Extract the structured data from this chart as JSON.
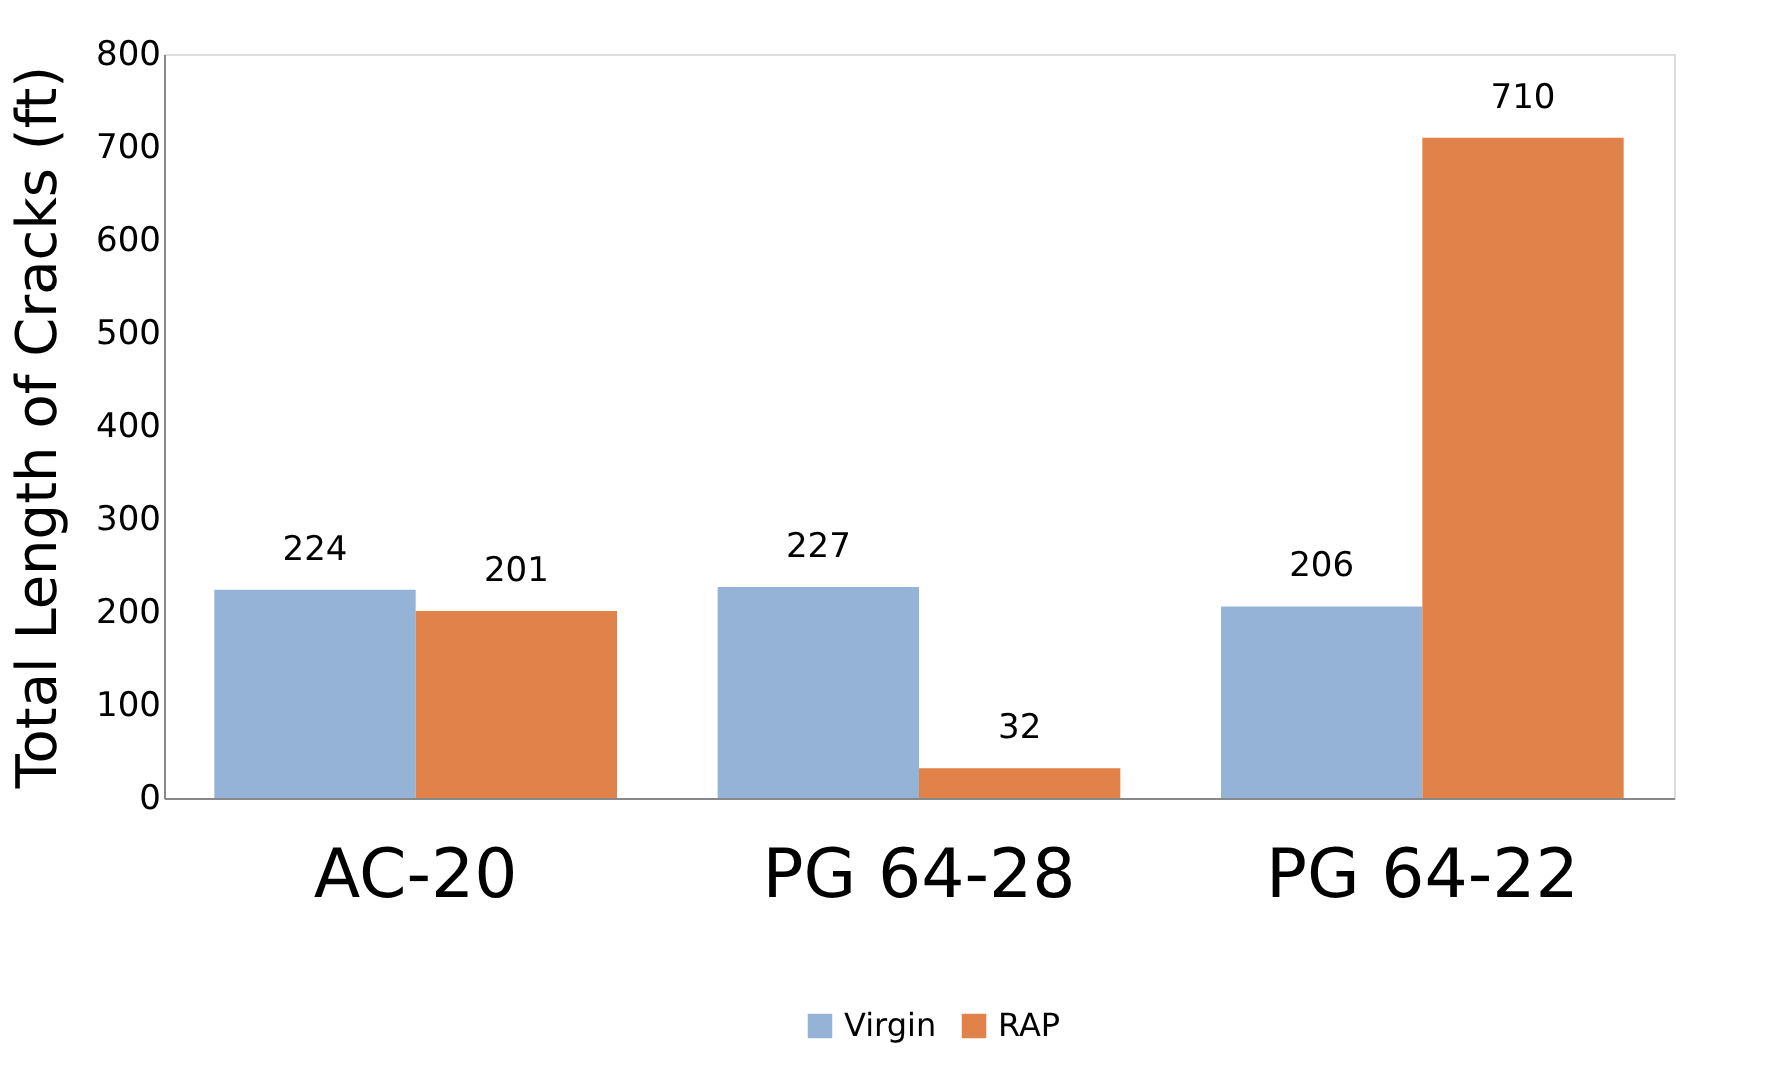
{
  "chart_data": {
    "type": "bar",
    "ylabel": "Total Length of Cracks (ft)",
    "categories": [
      "AC-20",
      "PG 64-28",
      "PG 64-22"
    ],
    "series": [
      {
        "name": "Virgin",
        "color": "#95b3d7",
        "values": [
          224,
          227,
          206
        ]
      },
      {
        "name": "RAP",
        "color": "#e0824a",
        "values": [
          201,
          32,
          710
        ]
      }
    ],
    "ylim": [
      0,
      800
    ],
    "yticks": [
      0,
      100,
      200,
      300,
      400,
      500,
      600,
      700,
      800
    ],
    "data_labels": true,
    "grid": false,
    "legend": "bottom"
  }
}
